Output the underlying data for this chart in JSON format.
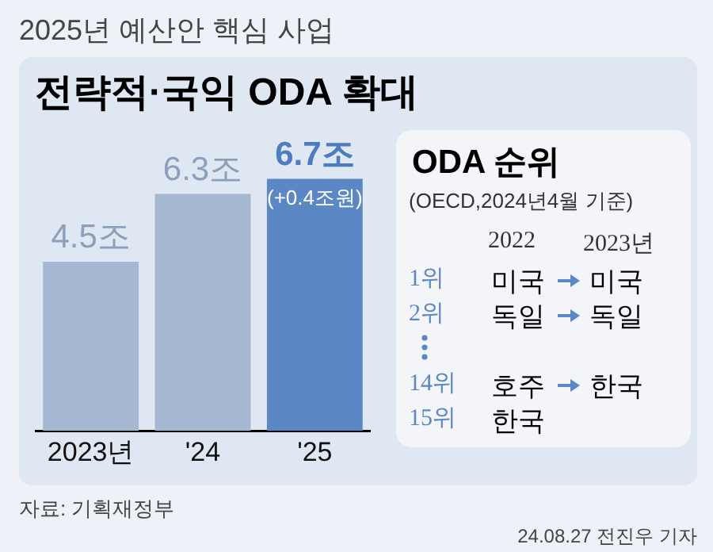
{
  "chart_data": {
    "type": "bar",
    "subtitle": "2025년 예산안 핵심 사업",
    "title": "전략적·국익 ODA 확대",
    "categories": [
      "2023년",
      "'24",
      "'25"
    ],
    "values": [
      4.5,
      6.3,
      6.7
    ],
    "value_labels": [
      "4.5조",
      "6.3조",
      "6.7조"
    ],
    "colors": [
      "#a5b7d1",
      "#a5b7d1",
      "#5b87c4"
    ],
    "grid": false,
    "legend": false,
    "annotations": [
      {
        "text": "(+0.4조원)",
        "x": "'25",
        "y": 6.7
      },
      "ODA 순위",
      "(OECD,2024년4월 기준)",
      "2022",
      "2023년",
      "1위",
      "미국",
      "미국",
      "2위",
      "독일",
      "독일",
      "14위",
      "호주",
      "한국",
      "15위",
      "한국",
      "자료: 기획재정부",
      "24.08.27 전진우 기자"
    ]
  }
}
